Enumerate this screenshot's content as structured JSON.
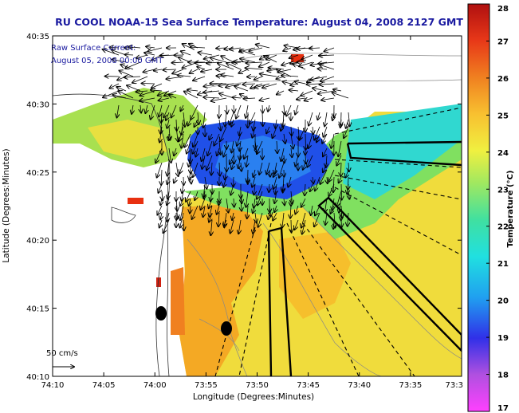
{
  "chart_data": {
    "type": "heatmap",
    "title": "RU COOL  NOAA-15  Sea Surface Temperature:  August 04, 2008 2127 GMT",
    "annotation_lines": [
      "Raw Surface Current:",
      "August 05, 2008 00:00 GMT"
    ],
    "xlabel": "Longitude (Degrees:Minutes)",
    "ylabel": "Latitude (Degrees:Minutes)",
    "x_ticks": [
      "74:10",
      "74:05",
      "74:00",
      "73:55",
      "73:50",
      "73:45",
      "73:40",
      "73:35",
      "73:3"
    ],
    "y_ticks": [
      "40:10",
      "40:15",
      "40:20",
      "40:25",
      "40:30",
      "40:35"
    ],
    "xlim": [
      -74.1667,
      -73.5
    ],
    "ylim": [
      40.1667,
      40.5833
    ],
    "scale_label": "50 cm/s",
    "colorbar": {
      "label": "Temperature (°C)",
      "min": 17,
      "max": 28,
      "ticks": [
        17,
        18,
        19,
        20,
        21,
        22,
        23,
        24,
        25,
        26,
        27,
        28
      ]
    },
    "colors": {
      "land_background": "#ffffff",
      "title_text": "#1a1aa0",
      "cold": "#2040e8",
      "mid": "#30e0c0",
      "warm": "#f0e040",
      "hot": "#e83010"
    }
  }
}
